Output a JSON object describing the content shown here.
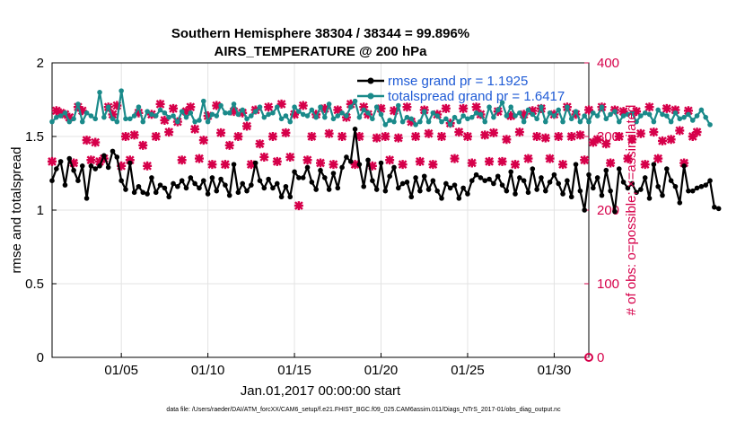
{
  "chart_data": {
    "type": "line",
    "title": "Southern Hemisphere 38304 / 38344 = 99.896%",
    "subtitle": "AIRS_TEMPERATURE @ 200 hPa",
    "xlabel": "Jan.01,2017 00:00:00 start",
    "ylabel": "rmse and totalspread",
    "ylabel_right": "# of obs: o=possible; ×=assimilated",
    "footnote": "data file: /Users/raeder/DAI/ATM_forcXX/CAM6_setup/f.e21.FHIST_BGC.f09_025.CAM6assim.011/Diags_NTrS_2017-01/obs_diag_output.nc",
    "xlim": [
      1,
      32
    ],
    "ylim": [
      0,
      2
    ],
    "ylim_right": [
      0,
      400
    ],
    "x_ticks": [
      5,
      10,
      15,
      20,
      25,
      30
    ],
    "x_tick_labels": [
      "01/05",
      "01/10",
      "01/15",
      "01/20",
      "01/25",
      "01/30"
    ],
    "y_ticks": [
      0,
      0.5,
      1,
      1.5,
      2
    ],
    "y_tick_labels": [
      "0",
      "0.5",
      "1",
      "1.5",
      "2"
    ],
    "y_right_ticks": [
      0,
      100,
      200,
      300,
      400
    ],
    "y_right_tick_labels": [
      "0",
      "100",
      "200",
      "300",
      "400"
    ],
    "grid": true,
    "legend_position": "top-right",
    "x_start": 1.0,
    "x_step": 0.25,
    "series": [
      {
        "name": "rmse grand pr = 1.1925",
        "color": "#000000",
        "values": [
          1.2,
          1.28,
          1.33,
          1.17,
          1.35,
          1.27,
          1.2,
          1.3,
          1.08,
          1.3,
          1.28,
          1.3,
          1.37,
          1.29,
          1.4,
          1.36,
          1.2,
          1.14,
          1.32,
          1.12,
          1.16,
          1.12,
          1.11,
          1.22,
          1.12,
          1.17,
          1.15,
          1.09,
          1.18,
          1.16,
          1.2,
          1.15,
          1.22,
          1.18,
          1.15,
          1.2,
          1.11,
          1.22,
          1.13,
          1.21,
          1.17,
          1.1,
          1.31,
          1.12,
          1.18,
          1.13,
          1.17,
          1.32,
          1.2,
          1.15,
          1.21,
          1.15,
          1.18,
          1.09,
          1.16,
          1.09,
          1.26,
          1.22,
          1.22,
          1.29,
          1.19,
          1.14,
          1.27,
          1.22,
          1.14,
          1.25,
          1.15,
          1.29,
          1.36,
          1.33,
          1.55,
          1.31,
          1.16,
          1.34,
          1.2,
          1.14,
          1.32,
          1.13,
          1.23,
          1.29,
          1.15,
          1.18,
          1.19,
          1.09,
          1.22,
          1.13,
          1.23,
          1.14,
          1.2,
          1.13,
          1.08,
          1.18,
          1.15,
          1.17,
          1.08,
          1.15,
          1.11,
          1.2,
          1.24,
          1.22,
          1.2,
          1.21,
          1.18,
          1.23,
          1.17,
          1.13,
          1.26,
          1.11,
          1.22,
          1.2,
          1.12,
          1.28,
          1.14,
          1.22,
          1.13,
          1.19,
          1.24,
          1.18,
          1.11,
          1.2,
          1.09,
          1.31,
          1.13,
          1.0,
          1.24,
          1.15,
          1.22,
          1.1,
          1.27,
          1.13,
          0.99,
          1.28,
          1.19,
          1.15,
          1.18,
          1.12,
          1.14,
          1.22,
          1.08,
          1.31,
          1.16,
          1.1,
          1.28,
          1.2,
          1.16,
          1.05,
          1.3,
          1.13,
          1.13,
          1.15,
          1.16,
          1.17,
          1.2,
          1.02,
          1.01
        ]
      },
      {
        "name": "totalspread grand pr = 1.6417",
        "color": "#1a8a8a",
        "values": [
          1.6,
          1.63,
          1.64,
          1.66,
          1.6,
          1.62,
          1.72,
          1.6,
          1.66,
          1.64,
          1.62,
          1.8,
          1.63,
          1.7,
          1.62,
          1.6,
          1.81,
          1.62,
          1.62,
          1.64,
          1.7,
          1.6,
          1.67,
          1.65,
          1.64,
          1.68,
          1.66,
          1.63,
          1.64,
          1.6,
          1.67,
          1.63,
          1.66,
          1.6,
          1.61,
          1.74,
          1.6,
          1.65,
          1.64,
          1.71,
          1.66,
          1.66,
          1.72,
          1.65,
          1.68,
          1.62,
          1.64,
          1.67,
          1.7,
          1.63,
          1.65,
          1.66,
          1.7,
          1.62,
          1.64,
          1.6,
          1.7,
          1.67,
          1.65,
          1.64,
          1.68,
          1.63,
          1.7,
          1.63,
          1.72,
          1.62,
          1.64,
          1.66,
          1.64,
          1.7,
          1.74,
          1.63,
          1.68,
          1.66,
          1.62,
          1.7,
          1.65,
          1.58,
          1.61,
          1.6,
          1.71,
          1.6,
          1.63,
          1.62,
          1.58,
          1.6,
          1.67,
          1.6,
          1.66,
          1.64,
          1.6,
          1.62,
          1.58,
          1.63,
          1.6,
          1.64,
          1.62,
          1.63,
          1.66,
          1.65,
          1.6,
          1.7,
          1.63,
          1.68,
          1.73,
          1.64,
          1.7,
          1.64,
          1.66,
          1.6,
          1.68,
          1.65,
          1.62,
          1.7,
          1.6,
          1.66,
          1.64,
          1.68,
          1.6,
          1.7,
          1.62,
          1.67,
          1.6,
          1.64,
          1.6,
          1.66,
          1.64,
          1.7,
          1.62,
          1.65,
          1.67,
          1.6,
          1.64,
          1.65,
          1.66,
          1.6,
          1.64,
          1.66,
          1.65,
          1.6,
          1.68,
          1.65,
          1.64,
          1.6,
          1.66,
          1.62,
          1.63,
          1.65,
          1.61,
          1.64,
          1.68,
          1.63,
          1.58
        ]
      }
    ],
    "obs_possible": {
      "name": "# of obs possible",
      "color": "#d6004a",
      "values": []
    },
    "obs_assimilated": {
      "name": "# of obs assimilated",
      "color": "#d6004a",
      "values": [
        266,
        335,
        332,
        330,
        326,
        264,
        340,
        335,
        295,
        268,
        292,
        266,
        270,
        340,
        330,
        342,
        260,
        300,
        268,
        302,
        332,
        288,
        260,
        330,
        300,
        344,
        322,
        306,
        338,
        320,
        268,
        334,
        340,
        310,
        270,
        295,
        328,
        262,
        342,
        305,
        262,
        288,
        334,
        300,
        332,
        314,
        262,
        336,
        290,
        272,
        340,
        300,
        266,
        344,
        305,
        272,
        330,
        206,
        342,
        268,
        300,
        330,
        264,
        338,
        304,
        262,
        336,
        300,
        326,
        344,
        262,
        300,
        340,
        330,
        260,
        298,
        338,
        300,
        268,
        335,
        298,
        262,
        340,
        320,
        300,
        266,
        336,
        304,
        262,
        330,
        300,
        338,
        318,
        270,
        306,
        338,
        300,
        264,
        340,
        330,
        302,
        266,
        305,
        334,
        266,
        296,
        328,
        262,
        306,
        330,
        270,
        335,
        300,
        338,
        298,
        270,
        330,
        300,
        262,
        340,
        300,
        330,
        302,
        268,
        336,
        292,
        296,
        340,
        290,
        264,
        336,
        300,
        334,
        270,
        296,
        334,
        304,
        262,
        340,
        306,
        270,
        294,
        338,
        296,
        336,
        308,
        264,
        335,
        300,
        306
      ]
    }
  }
}
